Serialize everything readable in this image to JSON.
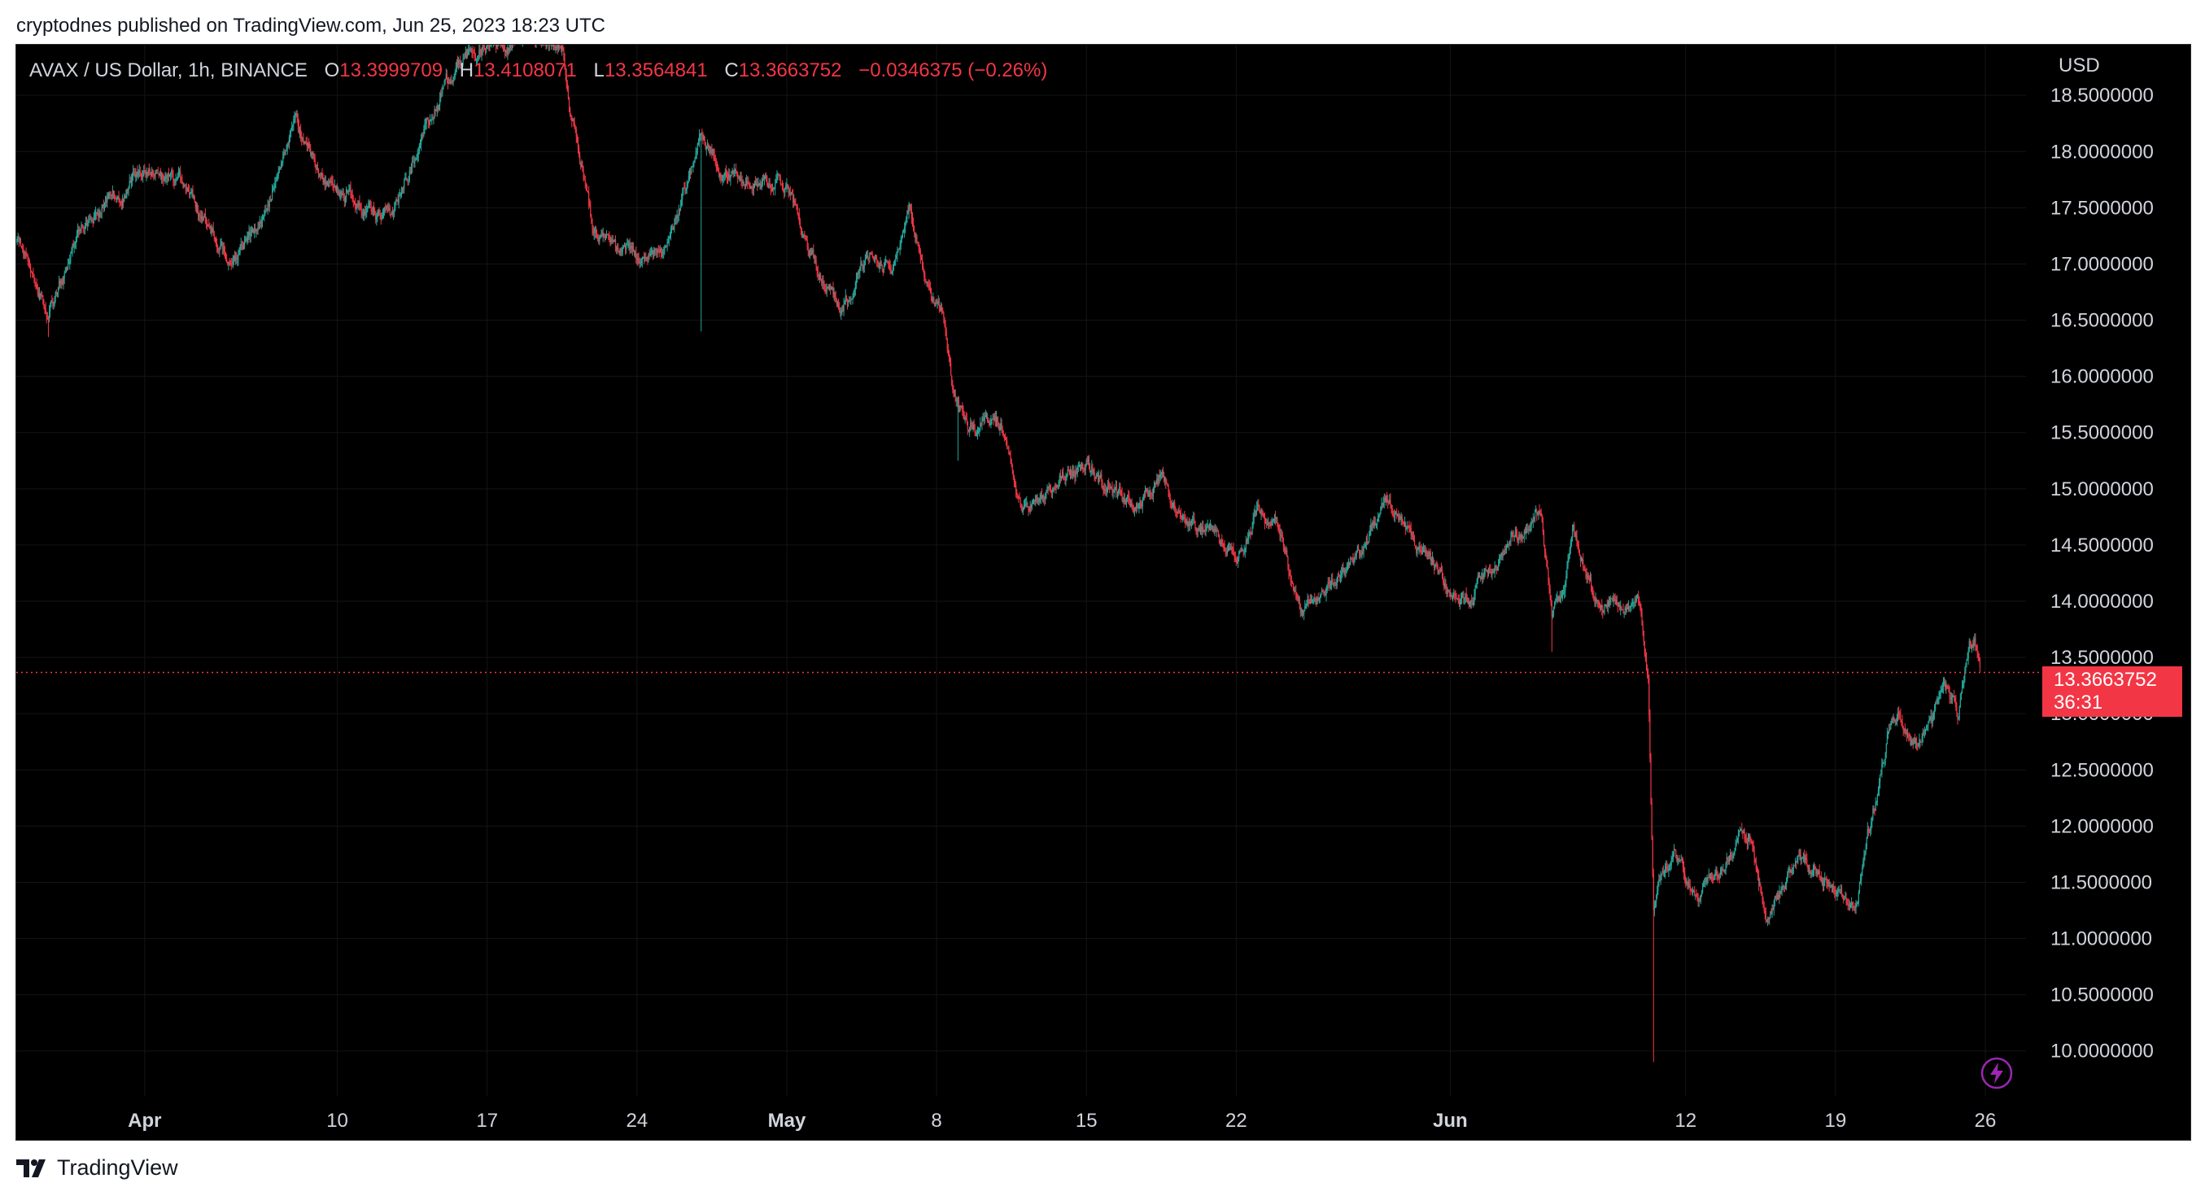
{
  "header": {
    "publisher_text": "cryptodnes published on TradingView.com, Jun 25, 2023 18:23 UTC"
  },
  "legend": {
    "symbol": "AVAX / US Dollar, 1h, BINANCE",
    "open_label": "O",
    "open_value": "13.3999709",
    "high_label": "H",
    "high_value": "13.4108071",
    "low_label": "L",
    "low_value": "13.3564841",
    "close_label": "C",
    "close_value": "13.3663752",
    "change": "−0.0346375 (−0.26%)"
  },
  "price_axis": {
    "currency": "USD",
    "current_price": "13.3663752",
    "countdown": "36:31"
  },
  "footer": {
    "brand": "TradingView"
  },
  "colors": {
    "up": "#26a69a",
    "down": "#f23645",
    "background": "#000000",
    "grid": "#141414",
    "axis_text": "#d1d4dc",
    "price_line": "#f23645",
    "lightning": "#9c27b0"
  },
  "icons": [
    "tradingview-logo-icon",
    "lightning-icon"
  ],
  "chart_data": {
    "type": "candlestick",
    "timeframe": "1h",
    "y_scale": "linear",
    "ylim": [
      9.6,
      18.95
    ],
    "y_ticks": [
      {
        "value": 18.5,
        "label": "18.5000000"
      },
      {
        "value": 18.0,
        "label": "18.0000000"
      },
      {
        "value": 17.5,
        "label": "17.5000000"
      },
      {
        "value": 17.0,
        "label": "17.0000000"
      },
      {
        "value": 16.5,
        "label": "16.5000000"
      },
      {
        "value": 16.0,
        "label": "16.0000000"
      },
      {
        "value": 15.5,
        "label": "15.5000000"
      },
      {
        "value": 15.0,
        "label": "15.0000000"
      },
      {
        "value": 14.5,
        "label": "14.5000000"
      },
      {
        "value": 14.0,
        "label": "14.0000000"
      },
      {
        "value": 13.5,
        "label": "13.5000000"
      },
      {
        "value": 13.0,
        "label": "13.0000000"
      },
      {
        "value": 12.5,
        "label": "12.5000000"
      },
      {
        "value": 12.0,
        "label": "12.0000000"
      },
      {
        "value": 11.5,
        "label": "11.5000000"
      },
      {
        "value": 11.0,
        "label": "11.0000000"
      },
      {
        "value": 10.5,
        "label": "10.5000000"
      },
      {
        "value": 10.0,
        "label": "10.0000000"
      }
    ],
    "x_start": "2023-03-26",
    "x_end": "2023-06-26",
    "x_ticks": [
      {
        "date": "2023-04-01",
        "label": "Apr",
        "bold": true
      },
      {
        "date": "2023-04-10",
        "label": "10",
        "bold": false
      },
      {
        "date": "2023-04-17",
        "label": "17",
        "bold": false
      },
      {
        "date": "2023-04-24",
        "label": "24",
        "bold": false
      },
      {
        "date": "2023-05-01",
        "label": "May",
        "bold": true
      },
      {
        "date": "2023-05-08",
        "label": "8",
        "bold": false
      },
      {
        "date": "2023-05-15",
        "label": "15",
        "bold": false
      },
      {
        "date": "2023-05-22",
        "label": "22",
        "bold": false
      },
      {
        "date": "2023-06-01",
        "label": "Jun",
        "bold": true
      },
      {
        "date": "2023-06-12",
        "label": "12",
        "bold": false
      },
      {
        "date": "2023-06-19",
        "label": "19",
        "bold": false
      },
      {
        "date": "2023-06-26",
        "label": "26",
        "bold": false
      }
    ],
    "current_price": 13.3663752,
    "approx_close_path": [
      {
        "date": "2023-03-26T00:00",
        "close": 17.2
      },
      {
        "date": "2023-03-27T12:00",
        "close": 16.55
      },
      {
        "date": "2023-03-29T00:00",
        "close": 17.3
      },
      {
        "date": "2023-04-01T00:00",
        "close": 17.85
      },
      {
        "date": "2023-04-03T00:00",
        "close": 17.7
      },
      {
        "date": "2023-04-05T00:00",
        "close": 17.0
      },
      {
        "date": "2023-04-06T12:00",
        "close": 17.4
      },
      {
        "date": "2023-04-08T00:00",
        "close": 18.3
      },
      {
        "date": "2023-04-09T12:00",
        "close": 17.7
      },
      {
        "date": "2023-04-11T12:00",
        "close": 17.5
      },
      {
        "date": "2023-04-12T12:00",
        "close": 17.4
      },
      {
        "date": "2023-04-14T00:00",
        "close": 18.2
      },
      {
        "date": "2023-04-16T00:00",
        "close": 18.9
      },
      {
        "date": "2023-04-17T12:00",
        "close": 19.0
      },
      {
        "date": "2023-04-19T00:00",
        "close": 19.0
      },
      {
        "date": "2023-04-20T12:00",
        "close": 18.9
      },
      {
        "date": "2023-04-21T00:00",
        "close": 18.3
      },
      {
        "date": "2023-04-22T00:00",
        "close": 17.3
      },
      {
        "date": "2023-04-23T00:00",
        "close": 17.1
      },
      {
        "date": "2023-04-25T00:00",
        "close": 17.05
      },
      {
        "date": "2023-04-26T00:00",
        "close": 17.5
      },
      {
        "date": "2023-04-27T00:00",
        "close": 18.1
      },
      {
        "date": "2023-04-28T12:00",
        "close": 17.75
      },
      {
        "date": "2023-05-01T00:00",
        "close": 17.7
      },
      {
        "date": "2023-05-02T00:00",
        "close": 17.1
      },
      {
        "date": "2023-05-03T12:00",
        "close": 16.6
      },
      {
        "date": "2023-05-05T00:00",
        "close": 17.1
      },
      {
        "date": "2023-05-06T00:00",
        "close": 16.95
      },
      {
        "date": "2023-05-06T18:00",
        "close": 17.45
      },
      {
        "date": "2023-05-07T12:00",
        "close": 16.8
      },
      {
        "date": "2023-05-08T06:00",
        "close": 16.6
      },
      {
        "date": "2023-05-08T18:00",
        "close": 15.9
      },
      {
        "date": "2023-05-09T12:00",
        "close": 15.5
      },
      {
        "date": "2023-05-11T00:00",
        "close": 15.6
      },
      {
        "date": "2023-05-12T00:00",
        "close": 14.8
      },
      {
        "date": "2023-05-13T12:00",
        "close": 15.1
      },
      {
        "date": "2023-05-15T00:00",
        "close": 15.2
      },
      {
        "date": "2023-05-16T00:00",
        "close": 15.0
      },
      {
        "date": "2023-05-17T12:00",
        "close": 14.85
      },
      {
        "date": "2023-05-18T12:00",
        "close": 15.15
      },
      {
        "date": "2023-05-19T12:00",
        "close": 14.7
      },
      {
        "date": "2023-05-21T00:00",
        "close": 14.6
      },
      {
        "date": "2023-05-22T00:00",
        "close": 14.35
      },
      {
        "date": "2023-05-23T00:00",
        "close": 14.85
      },
      {
        "date": "2023-05-24T00:00",
        "close": 14.6
      },
      {
        "date": "2023-05-25T00:00",
        "close": 13.95
      },
      {
        "date": "2023-05-26T12:00",
        "close": 14.15
      },
      {
        "date": "2023-05-28T00:00",
        "close": 14.5
      },
      {
        "date": "2023-05-29T00:00",
        "close": 14.9
      },
      {
        "date": "2023-05-30T12:00",
        "close": 14.45
      },
      {
        "date": "2023-06-01T00:00",
        "close": 14.1
      },
      {
        "date": "2023-06-02T00:00",
        "close": 14.0
      },
      {
        "date": "2023-06-03T00:00",
        "close": 14.35
      },
      {
        "date": "2023-06-04T00:00",
        "close": 14.55
      },
      {
        "date": "2023-06-05T06:00",
        "close": 14.8
      },
      {
        "date": "2023-06-05T18:00",
        "close": 13.85
      },
      {
        "date": "2023-06-06T06:00",
        "close": 14.0
      },
      {
        "date": "2023-06-06T18:00",
        "close": 14.6
      },
      {
        "date": "2023-06-07T18:00",
        "close": 14.05
      },
      {
        "date": "2023-06-08T18:00",
        "close": 13.95
      },
      {
        "date": "2023-06-09T18:00",
        "close": 14.0
      },
      {
        "date": "2023-06-10T06:00",
        "close": 13.3
      },
      {
        "date": "2023-06-10T12:00",
        "close": 11.2
      },
      {
        "date": "2023-06-10T18:00",
        "close": 11.5
      },
      {
        "date": "2023-06-11T12:00",
        "close": 11.7
      },
      {
        "date": "2023-06-12T12:00",
        "close": 11.35
      },
      {
        "date": "2023-06-13T12:00",
        "close": 11.6
      },
      {
        "date": "2023-06-14T12:00",
        "close": 11.9
      },
      {
        "date": "2023-06-15T00:00",
        "close": 11.9
      },
      {
        "date": "2023-06-15T18:00",
        "close": 11.25
      },
      {
        "date": "2023-06-16T12:00",
        "close": 11.45
      },
      {
        "date": "2023-06-17T12:00",
        "close": 11.7
      },
      {
        "date": "2023-06-18T12:00",
        "close": 11.5
      },
      {
        "date": "2023-06-19T12:00",
        "close": 11.35
      },
      {
        "date": "2023-06-20T00:00",
        "close": 11.3
      },
      {
        "date": "2023-06-20T12:00",
        "close": 11.95
      },
      {
        "date": "2023-06-21T00:00",
        "close": 12.3
      },
      {
        "date": "2023-06-21T12:00",
        "close": 12.9
      },
      {
        "date": "2023-06-22T00:00",
        "close": 13.1
      },
      {
        "date": "2023-06-22T12:00",
        "close": 12.75
      },
      {
        "date": "2023-06-23T12:00",
        "close": 12.85
      },
      {
        "date": "2023-06-24T00:00",
        "close": 13.3
      },
      {
        "date": "2023-06-24T12:00",
        "close": 13.15
      },
      {
        "date": "2023-06-24T18:00",
        "close": 12.95
      },
      {
        "date": "2023-06-25T06:00",
        "close": 13.55
      },
      {
        "date": "2023-06-25T12:00",
        "close": 13.6
      },
      {
        "date": "2023-06-25T18:00",
        "close": 13.37
      }
    ],
    "notable_wicks": [
      {
        "date": "2023-06-10T12:00",
        "low": 9.9
      },
      {
        "date": "2023-06-05T18:00",
        "low": 13.55
      },
      {
        "date": "2023-03-27T12:00",
        "low": 16.35
      },
      {
        "date": "2023-04-27T00:00",
        "low": 16.4
      },
      {
        "date": "2023-05-09T00:00",
        "low": 15.25
      }
    ]
  }
}
